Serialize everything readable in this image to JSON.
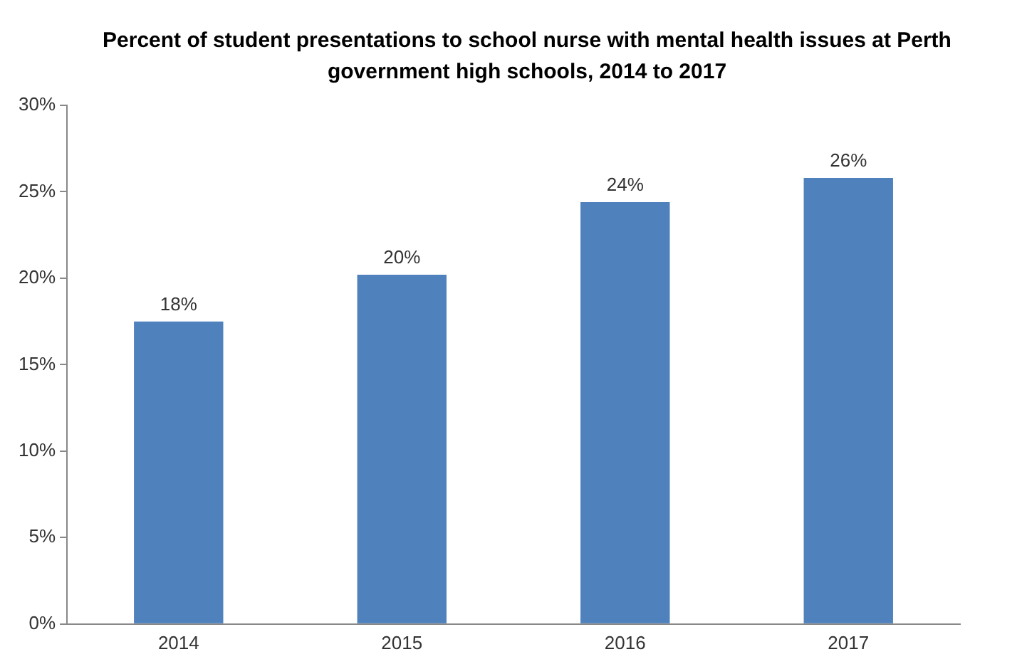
{
  "chart_data": {
    "type": "bar",
    "title": "Percent of student presentations to school nurse with mental health issues at Perth government high schools, 2014 to 2017",
    "categories": [
      "2014",
      "2015",
      "2016",
      "2017"
    ],
    "values": [
      17.5,
      20.2,
      24.4,
      25.8
    ],
    "value_labels": [
      "18%",
      "20%",
      "24%",
      "26%"
    ],
    "color": "#4f81bd",
    "ylim": [
      0,
      30
    ],
    "yticks": [
      {
        "value": 0,
        "label": "0%"
      },
      {
        "value": 5,
        "label": "5%"
      },
      {
        "value": 10,
        "label": "10%"
      },
      {
        "value": 15,
        "label": "15%"
      },
      {
        "value": 20,
        "label": "20%"
      },
      {
        "value": 25,
        "label": "25%"
      },
      {
        "value": 30,
        "label": "30%"
      }
    ],
    "grid": false,
    "legend": false
  }
}
